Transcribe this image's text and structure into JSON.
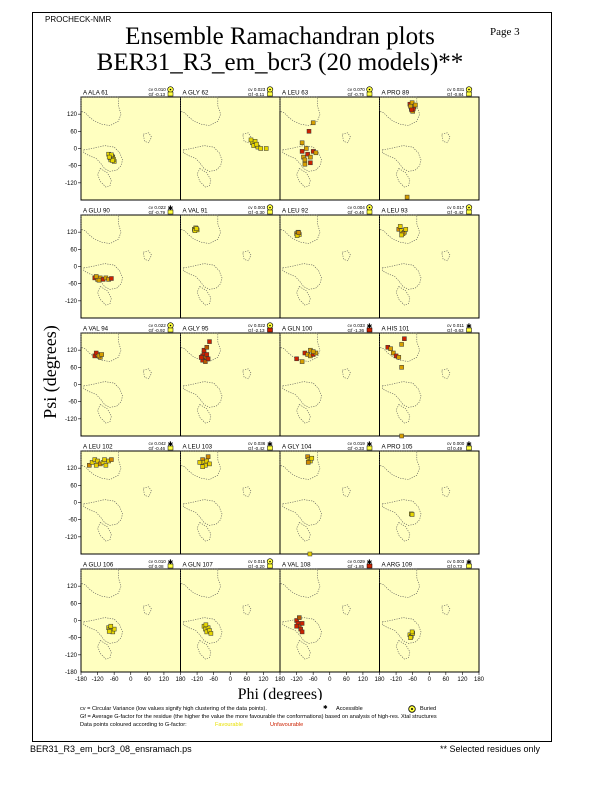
{
  "header": {
    "program": "PROCHECK-NMR",
    "page_label": "Page 3",
    "title_line1": "Ensemble Ramachandran plots",
    "title_line2": "BER31_R3_em_bcr3 (20 models)**"
  },
  "footer": {
    "filename": "BER31_R3_em_bcr3_08_ensramach.ps",
    "note": "** Selected residues only"
  },
  "legend": {
    "cv_text": "cv = Circular Variance (low values signify high clustering of the data points).",
    "accessible": "Accessible",
    "buried": "Buried",
    "gf_text": "Gf = Average G-factor for the residue (the higher the value the more favourable the conformations) based on analysis of high-res. Xtal structures",
    "colour_text": "Data points coloured according to G-factor:",
    "favourable": "Favourable",
    "unfavourable": "Unfavourable"
  },
  "colors": {
    "panel_bg": "#ffffc0",
    "favourable": "#e8e000",
    "unfavourable": "#cc2200"
  },
  "chart_data": {
    "type": "scatter",
    "xlabel": "Phi (degrees)",
    "ylabel": "Psi (degrees)",
    "xlim": [
      -180,
      180
    ],
    "ylim": [
      -180,
      180
    ],
    "xticks": [
      "-180",
      "-120",
      "-60",
      "0",
      "60",
      "120",
      "180"
    ],
    "yticks": [
      "120",
      "60",
      "0",
      "-60",
      "-120",
      "-180"
    ],
    "panels": [
      {
        "residue": "A ALA 61",
        "cv": "cv 0.010",
        "gf": "Gf -0.13",
        "access": "buried",
        "points": [
          [
            -75,
            -25
          ],
          [
            -70,
            -35
          ],
          [
            -65,
            -30
          ],
          [
            -72,
            -40
          ],
          [
            -80,
            -20
          ],
          [
            -60,
            -45
          ],
          [
            -68,
            -28
          ],
          [
            -74,
            -33
          ],
          [
            -62,
            -38
          ],
          [
            -70,
            -22
          ],
          [
            -66,
            -42
          ],
          [
            -78,
            -30
          ]
        ]
      },
      {
        "residue": "A GLY 62",
        "cv": "cv 0.023",
        "gf": "Gf -0.11",
        "access": "buried",
        "points": [
          [
            80,
            20
          ],
          [
            85,
            10
          ],
          [
            90,
            25
          ],
          [
            100,
            5
          ],
          [
            110,
            0
          ],
          [
            95,
            15
          ],
          [
            75,
            30
          ],
          [
            130,
            0
          ]
        ]
      },
      {
        "residue": "A LEU 63",
        "cv": "cv 0.070",
        "gf": "Gf -0.75",
        "access": "buried",
        "points": [
          [
            -100,
            -10
          ],
          [
            -95,
            -30
          ],
          [
            -90,
            -40
          ],
          [
            -80,
            -20
          ],
          [
            -70,
            -30
          ],
          [
            -85,
            0
          ],
          [
            -60,
            -10
          ],
          [
            -50,
            -15
          ],
          [
            -90,
            -55
          ],
          [
            -75,
            60
          ],
          [
            -60,
            90
          ],
          [
            -100,
            20
          ],
          [
            -70,
            -50
          ]
        ]
      },
      {
        "residue": "A PRO 89",
        "cv": "cv 0.031",
        "gf": "Gf -0.84",
        "access": "buried",
        "points": [
          [
            -60,
            150
          ],
          [
            -65,
            140
          ],
          [
            -55,
            145
          ],
          [
            -70,
            155
          ],
          [
            -60,
            130
          ],
          [
            -62,
            160
          ],
          [
            -58,
            138
          ],
          [
            -68,
            148
          ],
          [
            -50,
            152
          ],
          [
            -64,
            135
          ],
          [
            -80,
            -170
          ]
        ]
      },
      {
        "residue": "A GLU 90",
        "cv": "cv 0.022",
        "gf": "Gf -0.79",
        "access": "accessible",
        "points": [
          [
            -130,
            -40
          ],
          [
            -120,
            -45
          ],
          [
            -110,
            -40
          ],
          [
            -100,
            -45
          ],
          [
            -90,
            -40
          ],
          [
            -80,
            -45
          ],
          [
            -70,
            -42
          ],
          [
            -125,
            -35
          ],
          [
            -115,
            -48
          ]
        ]
      },
      {
        "residue": "A VAL 91",
        "cv": "cv 0.003",
        "gf": "Gf -0.30",
        "access": "buried",
        "points": [
          [
            -130,
            130
          ],
          [
            -125,
            135
          ],
          [
            -120,
            128
          ],
          [
            -128,
            125
          ],
          [
            -122,
            132
          ]
        ]
      },
      {
        "residue": "A LEU 92",
        "cv": "cv 0.004",
        "gf": "Gf -0.46",
        "access": "buried",
        "points": [
          [
            -120,
            115
          ],
          [
            -115,
            120
          ],
          [
            -110,
            112
          ],
          [
            -118,
            108
          ],
          [
            -112,
            118
          ]
        ]
      },
      {
        "residue": "A LEU 93",
        "cv": "cv 0.017",
        "gf": "Gf -0.42",
        "access": "buried",
        "points": [
          [
            -110,
            130
          ],
          [
            -100,
            125
          ],
          [
            -90,
            120
          ],
          [
            -105,
            140
          ],
          [
            -95,
            115
          ],
          [
            -85,
            130
          ],
          [
            -100,
            110
          ]
        ]
      },
      {
        "residue": "A VAL 94",
        "cv": "cv 0.022",
        "gf": "Gf -0.92",
        "access": "buried",
        "points": [
          [
            -130,
            100
          ],
          [
            -120,
            105
          ],
          [
            -110,
            95
          ],
          [
            -125,
            110
          ],
          [
            -115,
            100
          ],
          [
            -105,
            105
          ]
        ]
      },
      {
        "residue": "A GLY 95",
        "cv": "cv 0.022",
        "gf": "Gf -2.13",
        "access": "buried",
        "points": [
          [
            -100,
            100
          ],
          [
            -95,
            110
          ],
          [
            -90,
            95
          ],
          [
            -85,
            105
          ],
          [
            -100,
            85
          ],
          [
            -90,
            80
          ],
          [
            -80,
            90
          ],
          [
            -95,
            120
          ],
          [
            -85,
            130
          ],
          [
            -75,
            150
          ],
          [
            -105,
            95
          ]
        ]
      },
      {
        "residue": "A GLN 100",
        "cv": "cv 0.033",
        "gf": "Gf -1.36",
        "access": "accessible",
        "points": [
          [
            -90,
            110
          ],
          [
            -80,
            105
          ],
          [
            -70,
            100
          ],
          [
            -60,
            105
          ],
          [
            -50,
            110
          ],
          [
            -100,
            80
          ],
          [
            -120,
            90
          ],
          [
            -70,
            120
          ],
          [
            -60,
            115
          ]
        ]
      },
      {
        "residue": "A HIS 101",
        "cv": "cv 0.011",
        "gf": "Gf -0.63",
        "access": "accessible",
        "points": [
          [
            -150,
            130
          ],
          [
            -140,
            125
          ],
          [
            -130,
            110
          ],
          [
            -120,
            100
          ],
          [
            -110,
            95
          ],
          [
            -100,
            140
          ],
          [
            -90,
            160
          ],
          [
            -100,
            60
          ],
          [
            -100,
            -180
          ]
        ]
      },
      {
        "residue": "A LEU 102",
        "cv": "cv 0.042",
        "gf": "Gf -0.46",
        "access": "accessible",
        "points": [
          [
            -150,
            130
          ],
          [
            -140,
            140
          ],
          [
            -130,
            150
          ],
          [
            -120,
            145
          ],
          [
            -110,
            135
          ],
          [
            -100,
            140
          ],
          [
            -90,
            130
          ],
          [
            -80,
            145
          ],
          [
            -70,
            150
          ],
          [
            -125,
            130
          ],
          [
            -95,
            150
          ]
        ]
      },
      {
        "residue": "A LEU 103",
        "cv": "cv 0.036",
        "gf": "Gf -0.42",
        "access": "accessible",
        "points": [
          [
            -100,
            150
          ],
          [
            -95,
            140
          ],
          [
            -90,
            130
          ],
          [
            -85,
            145
          ],
          [
            -80,
            160
          ],
          [
            -75,
            135
          ],
          [
            -100,
            125
          ],
          [
            -110,
            140
          ]
        ]
      },
      {
        "residue": "A GLY 104",
        "cv": "cv 0.019",
        "gf": "Gf -0.33",
        "access": "accessible",
        "points": [
          [
            -80,
            160
          ],
          [
            -75,
            150
          ],
          [
            -70,
            145
          ],
          [
            -65,
            155
          ],
          [
            -78,
            140
          ],
          [
            -72,
            -180
          ]
        ]
      },
      {
        "residue": "A PRO 105",
        "cv": "cv 0.000",
        "gf": "Gf 0.49",
        "access": "accessible",
        "points": [
          [
            -65,
            -40
          ],
          [
            -62,
            -42
          ]
        ]
      },
      {
        "residue": "A GLU 106",
        "cv": "cv 0.010",
        "gf": "Gf 0.08",
        "access": "accessible",
        "points": [
          [
            -80,
            -25
          ],
          [
            -75,
            -30
          ],
          [
            -70,
            -35
          ],
          [
            -65,
            -40
          ],
          [
            -60,
            -30
          ],
          [
            -72,
            -20
          ],
          [
            -78,
            -38
          ]
        ]
      },
      {
        "residue": "A GLN 107",
        "cv": "cv 0.015",
        "gf": "Gf -0.20",
        "access": "buried",
        "points": [
          [
            -95,
            -20
          ],
          [
            -90,
            -30
          ],
          [
            -85,
            -40
          ],
          [
            -80,
            -25
          ],
          [
            -75,
            -35
          ],
          [
            -70,
            -45
          ],
          [
            -88,
            -15
          ]
        ]
      },
      {
        "residue": "A VAL 108",
        "cv": "cv 0.029",
        "gf": "Gf -1.85",
        "access": "accessible",
        "points": [
          [
            -120,
            0
          ],
          [
            -115,
            -10
          ],
          [
            -110,
            -20
          ],
          [
            -105,
            -30
          ],
          [
            -100,
            -40
          ],
          [
            -110,
            10
          ],
          [
            -120,
            -20
          ],
          [
            -100,
            -10
          ]
        ]
      },
      {
        "residue": "A ARG 109",
        "cv": "cv 0.003",
        "gf": "Gf 0.73",
        "access": "accessible",
        "points": [
          [
            -70,
            -50
          ],
          [
            -65,
            -55
          ],
          [
            -60,
            -45
          ],
          [
            -68,
            -60
          ],
          [
            -62,
            -40
          ]
        ]
      }
    ]
  }
}
